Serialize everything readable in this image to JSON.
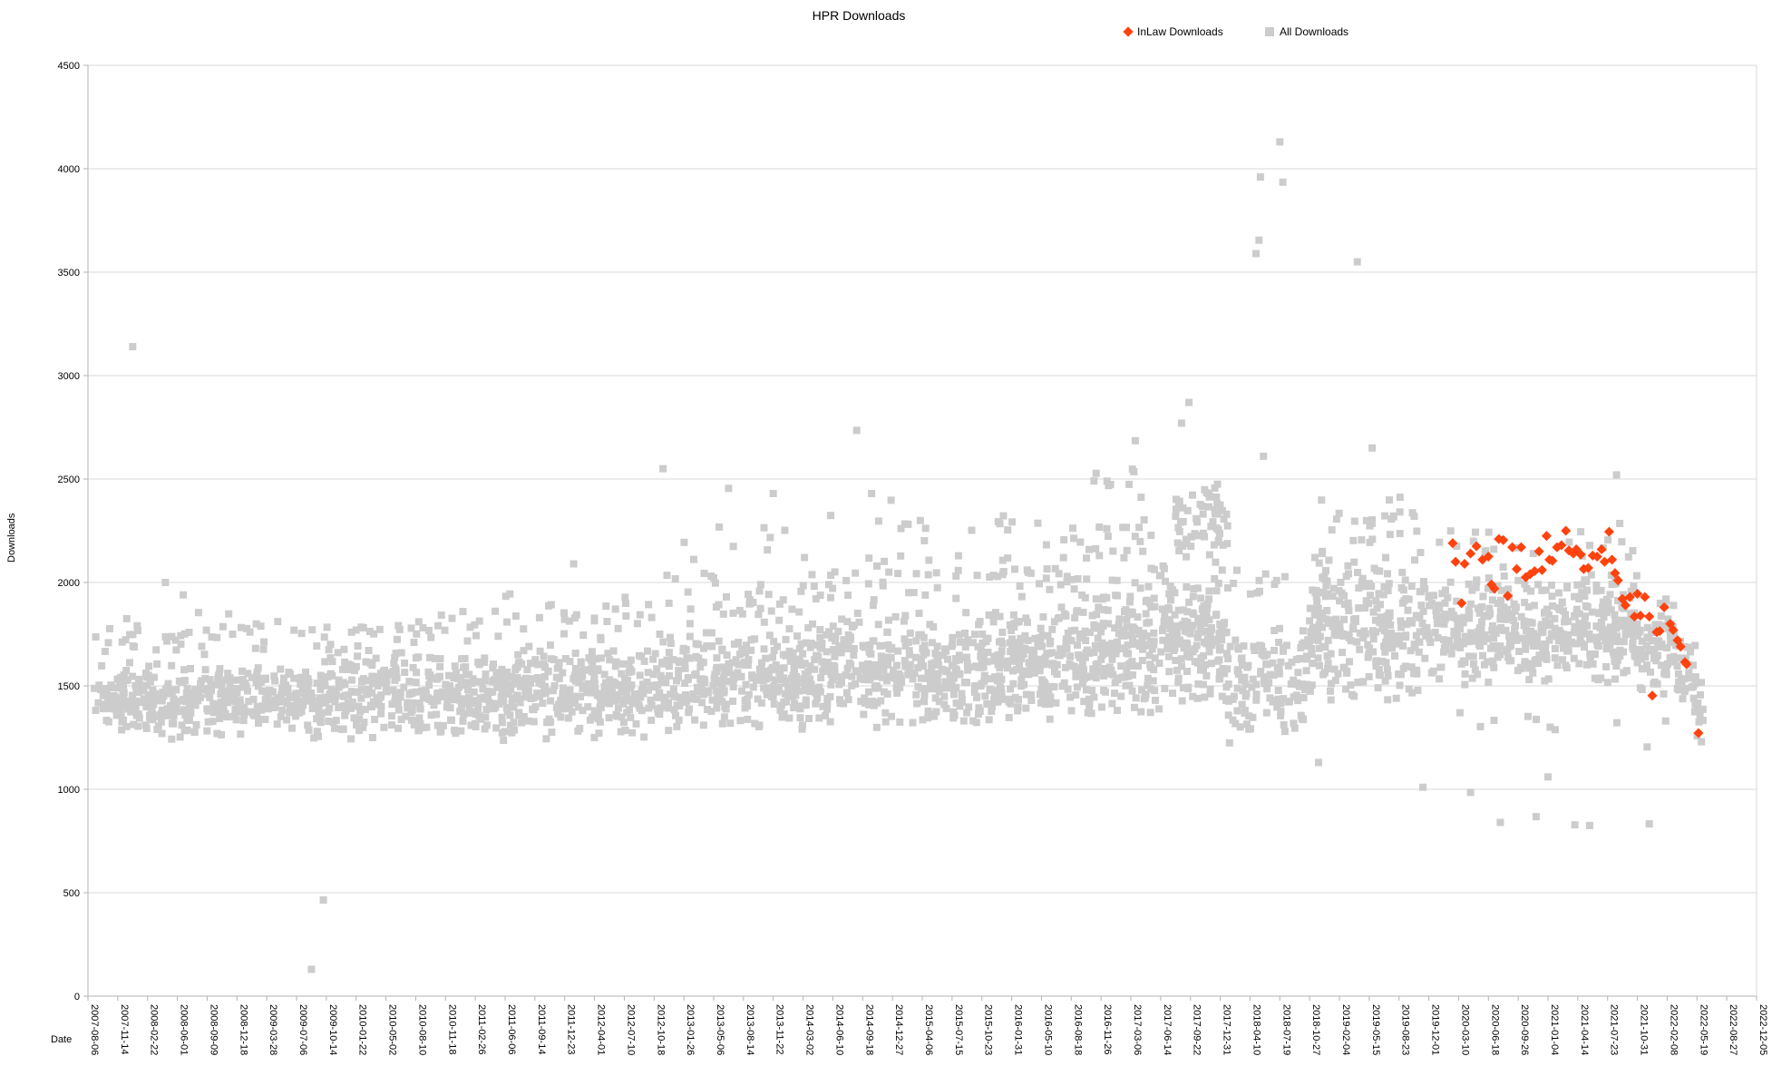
{
  "title": "HPR Downloads",
  "legend": {
    "items": [
      {
        "label": "InLaw Downloads",
        "marker": "diamond",
        "color": "#ff420e"
      },
      {
        "label": "All Downloads",
        "marker": "square",
        "color": "#cccccc"
      }
    ]
  },
  "axes": {
    "x_label": "Date",
    "y_label": "Downloads"
  },
  "chart_data": {
    "type": "scatter",
    "title": "HPR Downloads",
    "xlabel": "Date",
    "ylabel": "Downloads",
    "ylim": [
      0,
      4500
    ],
    "y_ticks": [
      0,
      500,
      1000,
      1500,
      2000,
      2500,
      3000,
      3500,
      4000,
      4500
    ],
    "grid": "horizontal",
    "legend_position": "top",
    "x_unit": "tick_index (each x tick = 100 days; fractional index interpolates dates)",
    "x_tick_labels": [
      "2007-08-06",
      "2007-11-14",
      "2008-02-22",
      "2008-06-01",
      "2008-09-09",
      "2008-12-18",
      "2009-03-28",
      "2009-07-06",
      "2009-10-14",
      "2010-01-22",
      "2010-05-02",
      "2010-08-10",
      "2010-11-18",
      "2011-02-26",
      "2011-06-06",
      "2011-09-14",
      "2011-12-23",
      "2012-04-01",
      "2012-07-10",
      "2012-10-18",
      "2013-01-26",
      "2013-05-06",
      "2013-08-14",
      "2013-11-22",
      "2014-03-02",
      "2014-06-10",
      "2014-09-18",
      "2014-12-27",
      "2015-04-06",
      "2015-07-15",
      "2015-10-23",
      "2016-01-31",
      "2016-05-10",
      "2016-08-18",
      "2016-11-26",
      "2017-03-06",
      "2017-06-14",
      "2017-09-22",
      "2017-12-31",
      "2018-04-10",
      "2018-07-19",
      "2018-10-27",
      "2019-02-04",
      "2019-05-15",
      "2019-08-23",
      "2019-12-01",
      "2020-03-10",
      "2020-06-18",
      "2020-09-26",
      "2021-01-04",
      "2021-04-14",
      "2021-07-23",
      "2021-10-31",
      "2022-02-08",
      "2022-05-19",
      "2022-08-27",
      "2022-12-05"
    ],
    "series": [
      {
        "name": "All Downloads",
        "marker": "square",
        "color": "#cccccc",
        "marker_size_px": 8,
        "representation": "density_segments_plus_outliers",
        "segments_format": "[from_tick, to_tick, point_count, value_low, value_high] — daily points too dense to list; band estimated from pixels",
        "segments": [
          [
            0.2,
            8,
            430,
            1230,
            1630
          ],
          [
            0.2,
            8,
            45,
            1600,
            1860
          ],
          [
            8,
            14,
            340,
            1230,
            1690
          ],
          [
            8,
            14,
            32,
            1660,
            1880
          ],
          [
            14,
            19,
            290,
            1230,
            1730
          ],
          [
            14,
            19,
            30,
            1700,
            1960
          ],
          [
            19,
            24,
            300,
            1260,
            1790
          ],
          [
            19,
            24,
            36,
            1760,
            2060
          ],
          [
            19.2,
            24,
            8,
            2060,
            2310
          ],
          [
            24,
            30,
            370,
            1280,
            1860
          ],
          [
            24,
            30,
            40,
            1830,
            2160
          ],
          [
            24.2,
            30,
            10,
            2160,
            2400
          ],
          [
            30,
            33,
            205,
            1300,
            1910
          ],
          [
            30,
            33,
            26,
            1890,
            2210
          ],
          [
            30.5,
            33,
            6,
            2210,
            2410
          ],
          [
            33,
            36,
            215,
            1320,
            1990
          ],
          [
            33,
            36,
            30,
            1960,
            2360
          ],
          [
            33.5,
            36,
            7,
            2360,
            2560
          ],
          [
            36,
            38.25,
            170,
            1400,
            2110
          ],
          [
            36.5,
            38.25,
            62,
            2100,
            2530
          ],
          [
            38.25,
            41,
            130,
            1200,
            1810
          ],
          [
            38.25,
            41,
            12,
            1800,
            2110
          ],
          [
            41,
            45,
            270,
            1400,
            2160
          ],
          [
            41.2,
            45,
            26,
            2120,
            2420
          ],
          [
            45,
            52,
            430,
            1480,
            2060
          ],
          [
            45,
            52,
            22,
            2050,
            2330
          ],
          [
            52,
            53.3,
            75,
            1400,
            1960
          ],
          [
            53.3,
            54,
            32,
            1350,
            1760
          ],
          [
            54,
            54.25,
            8,
            1230,
            1570
          ],
          [
            46,
            53,
            10,
            1130,
            1420
          ]
        ],
        "outliers_format": "[tick_index, downloads]",
        "outliers": [
          [
            1.3,
            1825
          ],
          [
            1.5,
            3140
          ],
          [
            2.6,
            2000
          ],
          [
            3.2,
            1940
          ],
          [
            7.5,
            130
          ],
          [
            7.9,
            465
          ],
          [
            16.3,
            2090
          ],
          [
            19.3,
            2550
          ],
          [
            21.5,
            2455
          ],
          [
            23.0,
            2430
          ],
          [
            25.8,
            2735
          ],
          [
            26.3,
            2430
          ],
          [
            34.2,
            2490
          ],
          [
            35.1,
            2535
          ],
          [
            35.15,
            2685
          ],
          [
            36.7,
            2770
          ],
          [
            36.95,
            2870
          ],
          [
            39.2,
            3590
          ],
          [
            39.3,
            3655
          ],
          [
            39.35,
            3960
          ],
          [
            39.45,
            2610
          ],
          [
            40.0,
            4130
          ],
          [
            40.1,
            3935
          ],
          [
            41.3,
            1130
          ],
          [
            42.6,
            3550
          ],
          [
            43.1,
            2650
          ],
          [
            44.8,
            1010
          ],
          [
            46.4,
            985
          ],
          [
            47.4,
            840
          ],
          [
            48.6,
            868
          ],
          [
            49.0,
            1060
          ],
          [
            49.9,
            828
          ],
          [
            50.4,
            825
          ],
          [
            51.3,
            2520
          ],
          [
            52.4,
            833
          ],
          [
            54.1,
            1360
          ],
          [
            54.15,
            1230
          ]
        ]
      },
      {
        "name": "InLaw Downloads",
        "marker": "diamond",
        "color": "#ff420e",
        "marker_size_px": 11,
        "points_format": "[tick_index, downloads]",
        "points": [
          [
            45.8,
            2190
          ],
          [
            45.9,
            2100
          ],
          [
            46.1,
            1900
          ],
          [
            46.2,
            2090
          ],
          [
            46.4,
            2140
          ],
          [
            46.6,
            2175
          ],
          [
            46.8,
            2110
          ],
          [
            47.0,
            2125
          ],
          [
            47.1,
            1990
          ],
          [
            47.2,
            1970
          ],
          [
            47.35,
            2210
          ],
          [
            47.5,
            2205
          ],
          [
            47.65,
            1935
          ],
          [
            47.8,
            2170
          ],
          [
            47.95,
            2065
          ],
          [
            48.1,
            2170
          ],
          [
            48.25,
            2025
          ],
          [
            48.4,
            2040
          ],
          [
            48.55,
            2055
          ],
          [
            48.7,
            2150
          ],
          [
            48.8,
            2060
          ],
          [
            48.95,
            2225
          ],
          [
            49.05,
            2110
          ],
          [
            49.15,
            2105
          ],
          [
            49.3,
            2170
          ],
          [
            49.45,
            2180
          ],
          [
            49.6,
            2250
          ],
          [
            49.7,
            2155
          ],
          [
            49.85,
            2140
          ],
          [
            49.95,
            2160
          ],
          [
            50.1,
            2135
          ],
          [
            50.2,
            2065
          ],
          [
            50.35,
            2070
          ],
          [
            50.5,
            2130
          ],
          [
            50.65,
            2125
          ],
          [
            50.8,
            2160
          ],
          [
            50.9,
            2100
          ],
          [
            51.05,
            2245
          ],
          [
            51.15,
            2110
          ],
          [
            51.25,
            2045
          ],
          [
            51.35,
            2010
          ],
          [
            51.5,
            1920
          ],
          [
            51.6,
            1890
          ],
          [
            51.75,
            1930
          ],
          [
            51.9,
            1835
          ],
          [
            52.0,
            1945
          ],
          [
            52.1,
            1840
          ],
          [
            52.25,
            1930
          ],
          [
            52.4,
            1835
          ],
          [
            52.5,
            1453
          ],
          [
            52.65,
            1760
          ],
          [
            52.75,
            1765
          ],
          [
            52.9,
            1880
          ],
          [
            53.1,
            1800
          ],
          [
            53.2,
            1770
          ],
          [
            53.35,
            1720
          ],
          [
            53.45,
            1690
          ],
          [
            53.6,
            1615
          ],
          [
            53.65,
            1605
          ],
          [
            54.05,
            1272
          ]
        ]
      }
    ]
  }
}
